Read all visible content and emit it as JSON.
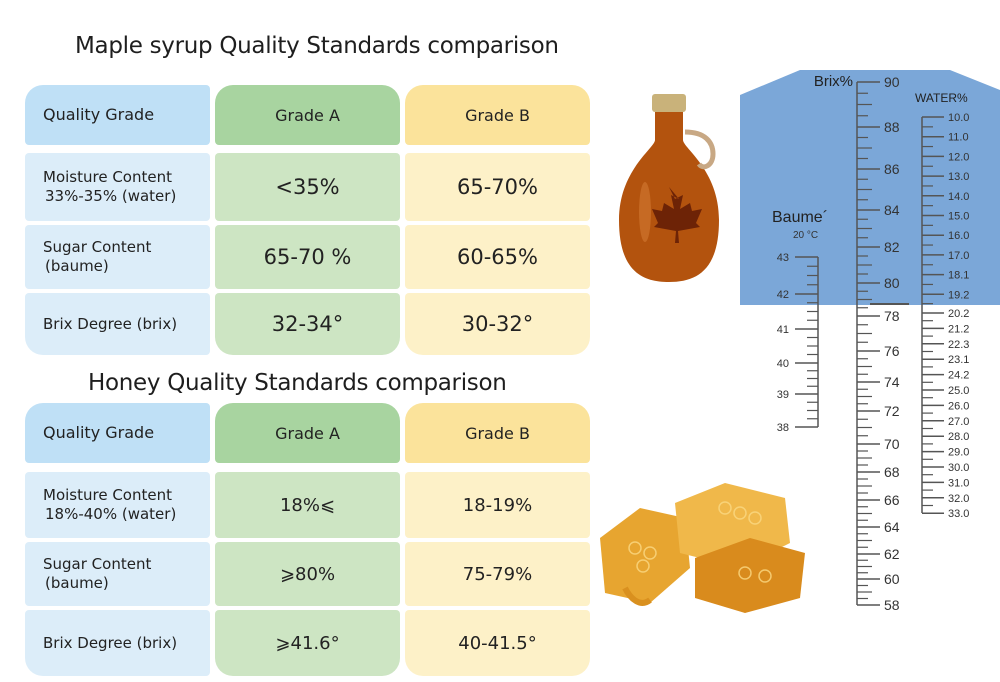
{
  "maple": {
    "title": "Maple syrup Quality Standards comparison",
    "header": [
      "Quality Grade",
      "Grade A",
      "Grade B"
    ],
    "rows": [
      {
        "label": "Moisture Content",
        "sub": "33%-35% (water)",
        "a": "<35%",
        "b": "65-70%"
      },
      {
        "label": "Sugar Content",
        "sub": "(baume)",
        "a": "65-70 %",
        "b": "60-65%"
      },
      {
        "label": "Brix Degree (brix)",
        "sub": "",
        "a": "32-34°",
        "b": "30-32°"
      }
    ]
  },
  "honey": {
    "title": "Honey Quality Standards comparison",
    "header": [
      "Quality Grade",
      "Grade A",
      "Grade B"
    ],
    "rows": [
      {
        "label": "Moisture Content",
        "sub": "18%-40% (water)",
        "a": "18%⩽",
        "b": "18-19%"
      },
      {
        "label": "Sugar Content",
        "sub": "(baume)",
        "a": "⩾80%",
        "b": "75-79%"
      },
      {
        "label": "Brix Degree (brix)",
        "sub": "",
        "a": "⩾41.6°",
        "b": "40-41.5°"
      }
    ]
  },
  "colors": {
    "label": "#dcedf9",
    "grade_a": "#cde5c3",
    "grade_b": "#fdf1c8",
    "scale_bg": "#7ba7d8"
  },
  "images": [
    "maple-syrup-bottle",
    "honeycomb"
  ],
  "scale": {
    "brix_label": "Brix%",
    "water_label": "WATER%",
    "baume_label": "Baume´",
    "baume_temp": "20 °C",
    "brix": [
      "90",
      "88",
      "86",
      "84",
      "82",
      "80",
      "78",
      "76",
      "74",
      "72",
      "70",
      "68",
      "66",
      "64",
      "62",
      "60",
      "58"
    ],
    "water": [
      "10.0",
      "11.0",
      "12.0",
      "13.0",
      "14.0",
      "15.0",
      "16.0",
      "17.0",
      "18.1",
      "19.2",
      "20.2",
      "21.2",
      "22.3",
      "23.1",
      "24.2",
      "25.0",
      "26.0",
      "27.0",
      "28.0",
      "29.0",
      "30.0",
      "31.0",
      "32.0",
      "33.0"
    ],
    "baume": [
      "43",
      "42",
      "41",
      "40",
      "39",
      "38"
    ]
  }
}
